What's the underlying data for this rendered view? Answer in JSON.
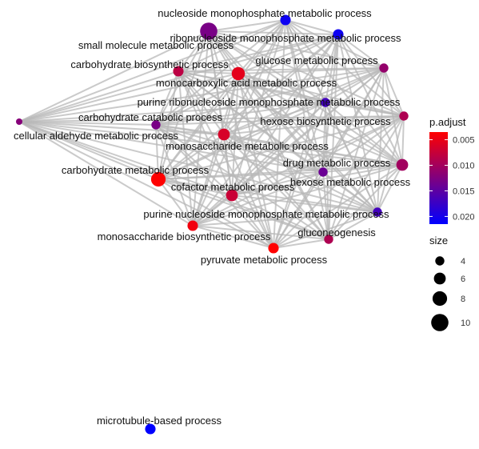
{
  "chart_data": {
    "type": "network",
    "nodes": [
      {
        "id": "nucleoside_mp",
        "label": "nucleoside monophosphate metabolic process",
        "size": 5,
        "p_adjust": 0.02
      },
      {
        "id": "ribonucleoside_mp",
        "label": "ribonucleoside monophosphate metabolic process",
        "size": 5,
        "p_adjust": 0.02
      },
      {
        "id": "small_molecule",
        "label": "small molecule metabolic process",
        "size": 10,
        "p_adjust": 0.012
      },
      {
        "id": "carb_biosynthetic",
        "label": "carbohydrate biosynthetic process",
        "size": 5,
        "p_adjust": 0.007
      },
      {
        "id": "glucose",
        "label": "glucose metabolic process",
        "size": 4,
        "p_adjust": 0.01
      },
      {
        "id": "monocarboxylic",
        "label": "monocarboxylic acid metabolic process",
        "size": 7,
        "p_adjust": 0.004
      },
      {
        "id": "purine_ribonucleoside_mp",
        "label": "purine ribonucleoside monophosphate metabolic process",
        "size": 4,
        "p_adjust": 0.016
      },
      {
        "id": "carb_catabolic",
        "label": "carbohydrate catabolic process",
        "size": 4,
        "p_adjust": 0.012
      },
      {
        "id": "hexose_biosynthetic",
        "label": "hexose biosynthetic process",
        "size": 4,
        "p_adjust": 0.008
      },
      {
        "id": "cellular_aldehyde",
        "label": "cellular aldehyde metabolic process",
        "size": 2,
        "p_adjust": 0.011
      },
      {
        "id": "monosaccharide",
        "label": "monosaccharide metabolic process",
        "size": 6,
        "p_adjust": 0.005
      },
      {
        "id": "drug",
        "label": "drug metabolic process",
        "size": 4,
        "p_adjust": 0.013
      },
      {
        "id": "hexose",
        "label": "hexose metabolic process",
        "size": 6,
        "p_adjust": 0.009
      },
      {
        "id": "carbohydrate",
        "label": "carbohydrate metabolic process",
        "size": 8,
        "p_adjust": 0.002
      },
      {
        "id": "cofactor",
        "label": "cofactor metabolic process",
        "size": 6,
        "p_adjust": 0.006
      },
      {
        "id": "purine_nucleoside_mp",
        "label": "purine nucleoside monophosphate metabolic process",
        "size": 4,
        "p_adjust": 0.016
      },
      {
        "id": "monosaccharide_biosynthetic",
        "label": "monosaccharide biosynthetic process",
        "size": 5,
        "p_adjust": 0.003
      },
      {
        "id": "gluconeogenesis",
        "label": "gluconeogenesis",
        "size": 4,
        "p_adjust": 0.008
      },
      {
        "id": "pyruvate",
        "label": "pyruvate metabolic process",
        "size": 5,
        "p_adjust": 0.002
      },
      {
        "id": "microtubule",
        "label": "microtubule-based process",
        "size": 5,
        "p_adjust": 0.021
      }
    ],
    "edges_note": "All nodes except microtubule-based process are interconnected by gray similarity edges",
    "legend_color": {
      "title": "p.adjust",
      "ticks": [
        0.005,
        0.01,
        0.015,
        0.02
      ],
      "tick_labels": [
        "0.005",
        "0.010",
        "0.015",
        "0.020"
      ],
      "low_color": "#ff0000",
      "high_color": "#0000ff"
    },
    "legend_size": {
      "title": "size",
      "values": [
        4,
        6,
        8,
        10
      ],
      "labels": [
        "4",
        "6",
        "8",
        "10"
      ]
    }
  }
}
